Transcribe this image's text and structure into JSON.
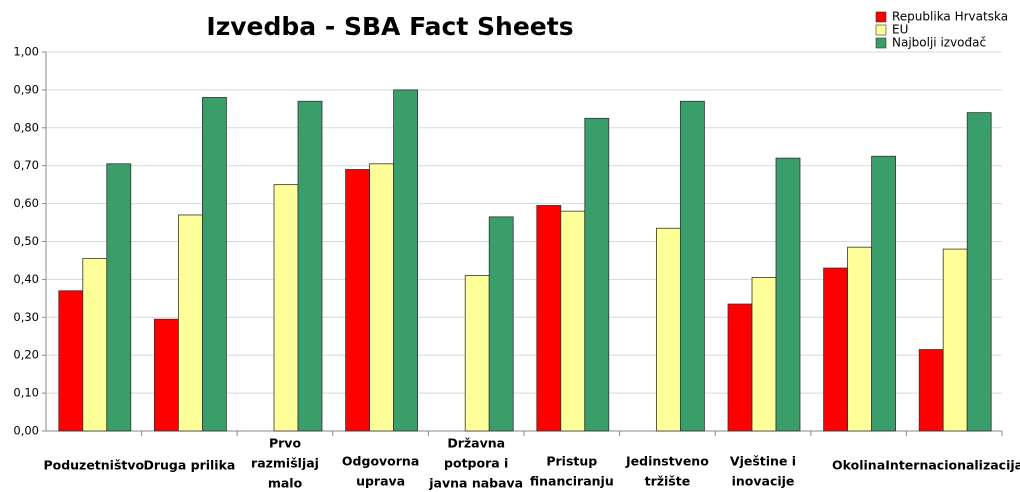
{
  "chart_data": {
    "type": "bar",
    "title": "Izvedba - SBA Fact Sheets",
    "categories": [
      [
        "Poduzetništvo"
      ],
      [
        "Druga prilika"
      ],
      [
        "Prvo",
        "razmišljaj",
        "malo"
      ],
      [
        "Odgovorna",
        "uprava"
      ],
      [
        "Državna",
        "potpora i",
        "javna nabava"
      ],
      [
        "Pristup",
        "financiranju"
      ],
      [
        "Jedinstveno",
        "tržište"
      ],
      [
        "Vještine i",
        "inovacije"
      ],
      [
        "Okolina"
      ],
      [
        "Internacionalizacija"
      ]
    ],
    "series": [
      {
        "name": "Republika Hrvatska",
        "color": "#ff0000",
        "values": [
          0.37,
          0.295,
          null,
          0.69,
          null,
          0.595,
          null,
          0.335,
          0.43,
          0.215
        ]
      },
      {
        "name": "EU",
        "color": "#ffff99",
        "values": [
          0.455,
          0.57,
          0.65,
          0.705,
          0.41,
          0.58,
          0.535,
          0.405,
          0.485,
          0.48
        ]
      },
      {
        "name": "Najbolji izvođač",
        "color": "#3a9e6a",
        "values": [
          0.705,
          0.88,
          0.87,
          0.9,
          0.565,
          0.825,
          0.87,
          0.72,
          0.725,
          0.84
        ]
      }
    ],
    "ylim": [
      0,
      1
    ],
    "yticks": [
      {
        "value": 0,
        "label": "0,00"
      },
      {
        "value": 0.1,
        "label": "0,10"
      },
      {
        "value": 0.2,
        "label": "0,20"
      },
      {
        "value": 0.3,
        "label": "0,30"
      },
      {
        "value": 0.4,
        "label": "0,40"
      },
      {
        "value": 0.5,
        "label": "0,50"
      },
      {
        "value": 0.6,
        "label": "0,60"
      },
      {
        "value": 0.7,
        "label": "0,70"
      },
      {
        "value": 0.8,
        "label": "0,80"
      },
      {
        "value": 0.9,
        "label": "0,90"
      },
      {
        "value": 1,
        "label": "1,00"
      }
    ],
    "grid": true,
    "legend": "top-right"
  }
}
